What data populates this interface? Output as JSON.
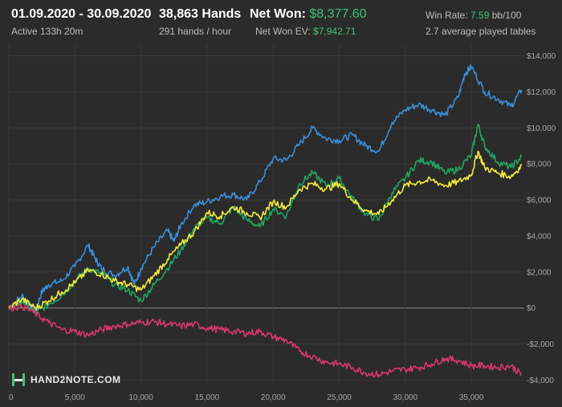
{
  "header": {
    "date_range": "01.09.2020 - 30.09.2020",
    "active": "Active 133h 20m",
    "hands": "38,863 Hands",
    "hands_per_hour": "291 hands / hour",
    "net_won_label": "Net Won:",
    "net_won_value": "$8,377.60",
    "net_won_ev_label": "Net Won  EV:",
    "net_won_ev_value": "$7,942.71",
    "win_rate_label": "Win Rate:",
    "win_rate_value": "7.59",
    "win_rate_unit": "bb/100",
    "avg_tables": "2.7 average played tables"
  },
  "logo": {
    "text": "HAND2NOTE.COM"
  },
  "colors": {
    "background": "#2b2b2b",
    "grid": "#3a3a3a",
    "zero_line": "#8a8a8a",
    "blue": "#3b8ed8",
    "green": "#1fa560",
    "yellow": "#f2ea3c",
    "red": "#d8386b",
    "accent_green": "#3ec47a"
  },
  "chart_data": {
    "type": "line",
    "xlim": [
      0,
      39000
    ],
    "ylim": [
      -4200,
      14600
    ],
    "x_ticks": [
      0,
      5000,
      10000,
      15000,
      20000,
      25000,
      30000,
      35000
    ],
    "x_tick_labels": [
      "0",
      "5,000",
      "10,000",
      "15,000",
      "20,000",
      "25,000",
      "30,000",
      "35,000"
    ],
    "y_ticks": [
      -4000,
      -2000,
      0,
      2000,
      4000,
      6000,
      8000,
      10000,
      12000,
      14000
    ],
    "y_tick_labels": [
      "-$4,000",
      "-$2,000",
      "$0",
      "$2,000",
      "$4,000",
      "$6,000",
      "$8,000",
      "$10,000",
      "$12,000",
      "$14,000"
    ],
    "grid": true,
    "series": [
      {
        "color_key": "blue",
        "x": [
          0,
          1000,
          1500,
          2000,
          2500,
          3000,
          4000,
          5000,
          6000,
          6500,
          7000,
          8000,
          9000,
          9500,
          10000,
          11000,
          12000,
          12500,
          13000,
          14000,
          15000,
          16000,
          17000,
          18000,
          19000,
          20000,
          21000,
          22000,
          23000,
          24000,
          25000,
          26000,
          27000,
          28000,
          29000,
          30000,
          31000,
          32000,
          33000,
          34000,
          34500,
          35000,
          36000,
          37000,
          38000,
          38800
        ],
        "y": [
          0,
          700,
          200,
          -200,
          900,
          1300,
          1500,
          2300,
          3500,
          2800,
          2200,
          1800,
          2300,
          1300,
          2200,
          3400,
          4300,
          3700,
          4600,
          5700,
          5900,
          6200,
          6300,
          6000,
          7000,
          8300,
          8200,
          9100,
          10000,
          9400,
          9300,
          9600,
          9000,
          8700,
          10300,
          11000,
          11300,
          11000,
          10700,
          11700,
          13000,
          13400,
          12000,
          11600,
          11200,
          12100
        ]
      },
      {
        "color_key": "green",
        "x": [
          0,
          1000,
          2000,
          3000,
          4000,
          5000,
          6000,
          7000,
          8000,
          9000,
          10000,
          11000,
          12000,
          13000,
          14000,
          15000,
          16000,
          17000,
          18000,
          19000,
          20000,
          21000,
          22000,
          23000,
          24000,
          25000,
          26000,
          27000,
          28000,
          29000,
          30000,
          31000,
          32000,
          33000,
          34000,
          35000,
          35500,
          36000,
          37000,
          38000,
          38800
        ],
        "y": [
          0,
          400,
          -300,
          200,
          700,
          1500,
          2200,
          1900,
          1300,
          1000,
          400,
          1300,
          2200,
          3200,
          4400,
          5000,
          4700,
          5600,
          4900,
          4500,
          5500,
          5100,
          6900,
          7500,
          6800,
          7200,
          6100,
          5200,
          4900,
          6400,
          7200,
          8200,
          8100,
          7500,
          7700,
          8500,
          10200,
          9000,
          8100,
          7800,
          8400
        ]
      },
      {
        "color_key": "yellow",
        "x": [
          0,
          1000,
          2000,
          3000,
          4000,
          5000,
          6000,
          7000,
          8000,
          9000,
          10000,
          11000,
          12000,
          13000,
          14000,
          15000,
          16000,
          17000,
          18000,
          19000,
          20000,
          21000,
          22000,
          23000,
          24000,
          25000,
          26000,
          27000,
          28000,
          29000,
          30000,
          31000,
          32000,
          33000,
          34000,
          35000,
          35500,
          36000,
          37000,
          38000,
          38800
        ],
        "y": [
          0,
          500,
          0,
          400,
          900,
          1400,
          2100,
          1900,
          1500,
          1300,
          1000,
          1800,
          2700,
          3500,
          4200,
          5300,
          5100,
          5600,
          5300,
          5000,
          5900,
          5600,
          6600,
          6900,
          6600,
          6900,
          6000,
          5400,
          5200,
          6000,
          6800,
          7000,
          7100,
          6800,
          7000,
          7400,
          8700,
          7800,
          7500,
          7300,
          7900
        ]
      },
      {
        "color_key": "red",
        "x": [
          0,
          1000,
          2000,
          3000,
          4000,
          5000,
          6000,
          7000,
          8000,
          9000,
          10000,
          11000,
          12000,
          13000,
          14000,
          15000,
          16000,
          17000,
          18000,
          19000,
          20000,
          21000,
          22000,
          23000,
          24000,
          25000,
          26000,
          27000,
          28000,
          29000,
          30000,
          31000,
          32000,
          33000,
          34000,
          35000,
          36000,
          37000,
          38000,
          38800
        ],
        "y": [
          0,
          100,
          -300,
          -800,
          -1200,
          -1300,
          -1500,
          -1200,
          -1000,
          -900,
          -800,
          -750,
          -900,
          -1000,
          -900,
          -1100,
          -1200,
          -1300,
          -1400,
          -1300,
          -1600,
          -1800,
          -2400,
          -2700,
          -3000,
          -3100,
          -3300,
          -3600,
          -3700,
          -3500,
          -3400,
          -3300,
          -3100,
          -2800,
          -2900,
          -3200,
          -3200,
          -3300,
          -3200,
          -3700
        ]
      }
    ]
  }
}
